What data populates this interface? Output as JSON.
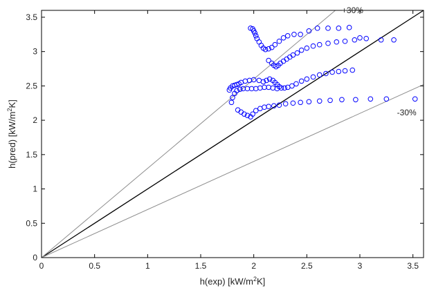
{
  "chart_data": {
    "type": "scatter",
    "title": "",
    "xlabel_parts": [
      "h(exp) [kW/m",
      "2",
      "K]"
    ],
    "ylabel_parts": [
      "h(pred) [kW/m",
      "2",
      "K]"
    ],
    "xlim": [
      0,
      3.6
    ],
    "ylim": [
      0,
      3.6
    ],
    "xticks": [
      0,
      0.5,
      1,
      1.5,
      2,
      2.5,
      3,
      3.5
    ],
    "xtick_labels": [
      "0",
      "0.5",
      "1",
      "1.5",
      "2",
      "2.5",
      "3",
      "3.5"
    ],
    "yticks": [
      0,
      0.5,
      1,
      1.5,
      2,
      2.5,
      3,
      3.5
    ],
    "ytick_labels": [
      "0",
      "0.5",
      "1",
      "1.5",
      "2",
      "2.5",
      "3",
      "3.5"
    ],
    "grid": false,
    "marker_color": "#0000ff",
    "reference_lines": [
      {
        "slope": 1.0,
        "color": "#000000",
        "label": ""
      },
      {
        "slope": 1.3,
        "color": "#8c8c8c",
        "label": "+30%"
      },
      {
        "slope": 0.7,
        "color": "#8c8c8c",
        "label": "-30%"
      }
    ],
    "annotations": [
      {
        "text": "+30%",
        "x": 2.83,
        "y": 3.56
      },
      {
        "text": "-30%",
        "x": 3.35,
        "y": 2.07
      }
    ],
    "series": [
      {
        "x": [
          1.97,
          1.99,
          2.0,
          2.01,
          2.02,
          2.03,
          2.05,
          2.07,
          2.09,
          2.11,
          2.14,
          2.17,
          2.2,
          2.24,
          2.28,
          2.32,
          2.38,
          2.44,
          2.52,
          2.6,
          2.7,
          2.8,
          2.9
        ],
        "y": [
          3.34,
          3.33,
          3.3,
          3.27,
          3.23,
          3.19,
          3.14,
          3.09,
          3.05,
          3.03,
          3.04,
          3.06,
          3.1,
          3.15,
          3.2,
          3.23,
          3.25,
          3.25,
          3.3,
          3.34,
          3.34,
          3.34,
          3.35
        ]
      },
      {
        "x": [
          2.14,
          2.17,
          2.19,
          2.21,
          2.23,
          2.25,
          2.28,
          2.31,
          2.34,
          2.37,
          2.41,
          2.45,
          2.5,
          2.56,
          2.62,
          2.7,
          2.78,
          2.86,
          2.95,
          3.0,
          3.06,
          3.2,
          3.32
        ],
        "y": [
          2.87,
          2.83,
          2.8,
          2.78,
          2.8,
          2.83,
          2.86,
          2.89,
          2.92,
          2.95,
          2.98,
          3.02,
          3.05,
          3.08,
          3.1,
          3.12,
          3.14,
          3.15,
          3.17,
          3.2,
          3.19,
          3.17,
          3.17
        ]
      },
      {
        "x": [
          1.77,
          1.78,
          1.8,
          1.82,
          1.84,
          1.86,
          1.88,
          1.92,
          1.96,
          2.0,
          2.05,
          2.09,
          2.12,
          2.15,
          2.18,
          2.2,
          2.22,
          2.24,
          2.26,
          2.29,
          2.32,
          2.36,
          2.4,
          2.45,
          2.5,
          2.56,
          2.62,
          2.68,
          2.74,
          2.8,
          2.86,
          2.93
        ],
        "y": [
          2.44,
          2.47,
          2.5,
          2.51,
          2.52,
          2.53,
          2.55,
          2.57,
          2.58,
          2.59,
          2.58,
          2.56,
          2.58,
          2.6,
          2.58,
          2.55,
          2.52,
          2.49,
          2.47,
          2.47,
          2.48,
          2.5,
          2.53,
          2.57,
          2.6,
          2.63,
          2.66,
          2.68,
          2.7,
          2.71,
          2.72,
          2.73
        ]
      },
      {
        "x": [
          1.79,
          1.8,
          1.82,
          1.84,
          1.87,
          1.9,
          1.94,
          1.98,
          2.02,
          2.06,
          2.1,
          2.14,
          2.18,
          2.22
        ],
        "y": [
          2.26,
          2.33,
          2.39,
          2.43,
          2.45,
          2.46,
          2.46,
          2.46,
          2.46,
          2.47,
          2.48,
          2.48,
          2.47,
          2.46
        ]
      },
      {
        "x": [
          1.85,
          1.88,
          1.91,
          1.94,
          1.97,
          1.99,
          2.02,
          2.06,
          2.1,
          2.14,
          2.19,
          2.24,
          2.3,
          2.37,
          2.44,
          2.52,
          2.62,
          2.72,
          2.83,
          2.96,
          3.1,
          3.25,
          3.52
        ],
        "y": [
          2.15,
          2.12,
          2.09,
          2.07,
          2.05,
          2.09,
          2.14,
          2.17,
          2.19,
          2.2,
          2.21,
          2.22,
          2.24,
          2.25,
          2.26,
          2.27,
          2.28,
          2.29,
          2.3,
          2.3,
          2.31,
          2.31,
          2.31
        ]
      }
    ]
  }
}
